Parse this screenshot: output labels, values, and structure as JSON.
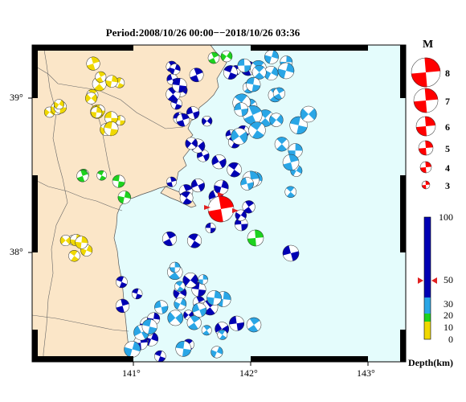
{
  "title": "Period:2008/10/26 00:00−−2018/10/26 03:36",
  "lat_labels": [
    "39°",
    "38°"
  ],
  "lon_labels": [
    "141°",
    "142°",
    "143°"
  ],
  "magnitude_legend": {
    "header": "M",
    "levels": [
      "8",
      "7",
      "6",
      "5",
      "4",
      "3"
    ]
  },
  "depth_scale": {
    "ticks": [
      "100",
      "50",
      "30",
      "20",
      "10",
      "0"
    ],
    "label": "Depth(km)",
    "marker_value": 48
  },
  "colors": {
    "land": "#fbe6c8",
    "sea": "#e4fcfc",
    "deep": "#0000b4",
    "mid": "#2aa6e6",
    "shallow": "#1ed21e",
    "surface": "#f0d800",
    "main_shock": "#ff0000"
  }
}
